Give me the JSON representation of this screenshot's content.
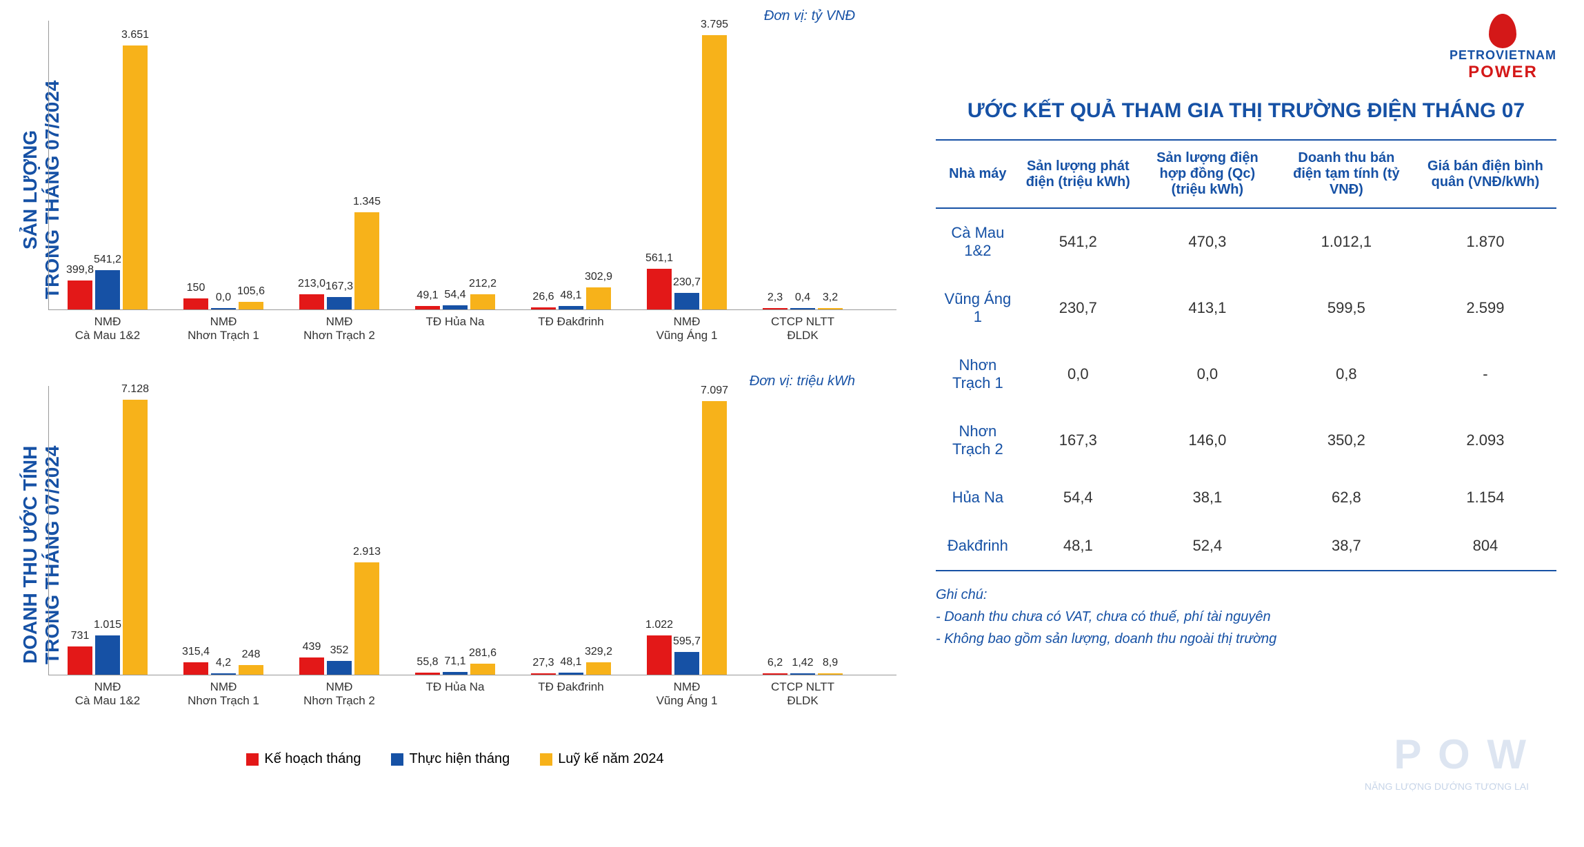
{
  "logo": {
    "line1": "PETROVIETNAM",
    "line2": "POWER"
  },
  "watermark": {
    "main": "P O W",
    "sub": "NĂNG LƯỢNG DƯỚNG TƯƠNG LAI"
  },
  "legend": {
    "items": [
      {
        "label": "Kế hoạch tháng",
        "color": "#e31818"
      },
      {
        "label": "Thực hiện tháng",
        "color": "#1651a5"
      },
      {
        "label": "Luỹ kế năm 2024",
        "color": "#f7b21a"
      }
    ]
  },
  "chart1": {
    "y_title": "SẢN LƯỢNG\nTRONG THÁNG 07/2024",
    "unit": "Đơn vị: tỷ VNĐ",
    "ymax": 4000,
    "colors": {
      "plan": "#e31818",
      "actual": "#1651a5",
      "cumul": "#f7b21a"
    },
    "categories": [
      "NMĐ\nCà Mau 1&2",
      "NMĐ\nNhơn Trạch 1",
      "NMĐ\nNhơn Trạch 2",
      "TĐ Hủa Na",
      "TĐ Đakđrinh",
      "NMĐ\nVũng Áng 1",
      "CTCP NLTT\nĐLDK"
    ],
    "series": {
      "plan": [
        "399,8",
        "150",
        "213,0",
        "49,1",
        "26,6",
        "561,1",
        "2,3"
      ],
      "actual": [
        "541,2",
        "0,0",
        "167,3",
        "54,4",
        "48,1",
        "230,7",
        "0,4"
      ],
      "cumul": [
        "3.651",
        "105,6",
        "1.345",
        "212,2",
        "302,9",
        "3.795",
        "3,2"
      ]
    },
    "values": {
      "plan": [
        399.8,
        150,
        213.0,
        49.1,
        26.6,
        561.1,
        2.3
      ],
      "actual": [
        541.2,
        0,
        167.3,
        54.4,
        48.1,
        230.7,
        0.4
      ],
      "cumul": [
        3651,
        105.6,
        1345,
        212.2,
        302.9,
        3795,
        3.2
      ]
    }
  },
  "chart2": {
    "y_title": "DOANH THU ƯỚC TÍNH\nTRONG THÁNG 07/2024",
    "unit": "Đơn vị: triệu kWh",
    "ymax": 7500,
    "colors": {
      "plan": "#e31818",
      "actual": "#1651a5",
      "cumul": "#f7b21a"
    },
    "categories": [
      "NMĐ\nCà Mau 1&2",
      "NMĐ\nNhơn Trạch 1",
      "NMĐ\nNhơn Trạch 2",
      "TĐ Hủa Na",
      "TĐ Đakđrinh",
      "NMĐ\nVũng Áng 1",
      "CTCP NLTT\nĐLDK"
    ],
    "series": {
      "plan": [
        "731",
        "315,4",
        "439",
        "55,8",
        "27,3",
        "1.022",
        "6,2"
      ],
      "actual": [
        "1.015",
        "4,2",
        "352",
        "71,1",
        "48,1",
        "595,7",
        "1,42"
      ],
      "cumul": [
        "7.128",
        "248",
        "2.913",
        "281,6",
        "329,2",
        "7.097",
        "8,9"
      ]
    },
    "values": {
      "plan": [
        731,
        315.4,
        439,
        55.8,
        27.3,
        1022,
        6.2
      ],
      "actual": [
        1015,
        4.2,
        352,
        71.1,
        48.1,
        595.7,
        1.42
      ],
      "cumul": [
        7128,
        248,
        2913,
        281.6,
        329.2,
        7097,
        8.9
      ]
    }
  },
  "table": {
    "title": "ƯỚC KẾT QUẢ THAM GIA THỊ TRƯỜNG ĐIỆN THÁNG 07",
    "columns": [
      "Nhà máy",
      "Sản lượng phát điện (triệu kWh)",
      "Sản lượng điện hợp đồng (Qc) (triệu kWh)",
      "Doanh thu bán điện tạm tính (tỷ VNĐ)",
      "Giá bán điện bình quân (VNĐ/kWh)"
    ],
    "rows": [
      [
        "Cà Mau 1&2",
        "541,2",
        "470,3",
        "1.012,1",
        "1.870"
      ],
      [
        "Vũng Áng 1",
        "230,7",
        "413,1",
        "599,5",
        "2.599"
      ],
      [
        "Nhơn Trạch 1",
        "0,0",
        "0,0",
        "0,8",
        "-"
      ],
      [
        "Nhơn Trạch 2",
        "167,3",
        "146,0",
        "350,2",
        "2.093"
      ],
      [
        "Hủa Na",
        "54,4",
        "38,1",
        "62,8",
        "1.154"
      ],
      [
        "Đakđrinh",
        "48,1",
        "52,4",
        "38,7",
        "804"
      ]
    ],
    "footnote_title": "Ghi chú:",
    "footnotes": [
      "- Doanh thu chưa có VAT, chưa có thuế, phí tài nguyên",
      "- Không bao gồm sản lượng, doanh thu ngoài thị trường"
    ]
  }
}
